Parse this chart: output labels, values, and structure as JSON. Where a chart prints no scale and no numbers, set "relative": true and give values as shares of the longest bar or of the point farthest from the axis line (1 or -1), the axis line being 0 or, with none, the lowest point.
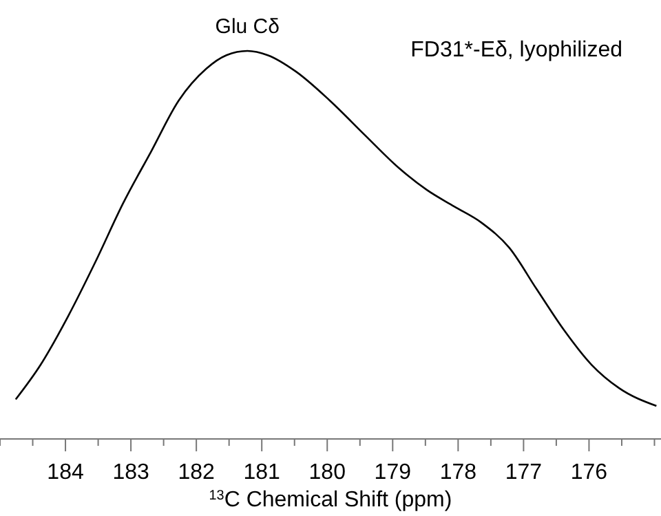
{
  "chart_data": {
    "type": "line",
    "title": "FD31*-Eδ, lyophilized",
    "xlabel": "$^{13}$C Chemical Shift (ppm)",
    "relative": true,
    "xlim": [
      185.0,
      174.9
    ],
    "xticks": [
      184,
      183,
      182,
      181,
      180,
      179,
      178,
      177,
      176
    ],
    "annotations": [
      {
        "text": "Glu Cδ",
        "x": 181.22,
        "y": 1
      }
    ],
    "marker": "none",
    "line_style": "solid",
    "tick_labels": "x",
    "series": [
      {
        "color": "#000000",
        "x": [
          184.76,
          184.38,
          183.96,
          183.54,
          183.12,
          182.69,
          182.27,
          181.85,
          181.54,
          181.22,
          180.91,
          180.48,
          179.96,
          179.43,
          178.91,
          178.48,
          178.06,
          177.64,
          177.22,
          176.8,
          176.38,
          175.96,
          175.54,
          174.97
        ],
        "values": [
          0.102,
          0.191,
          0.316,
          0.457,
          0.607,
          0.741,
          0.872,
          0.954,
          0.989,
          1,
          0.989,
          0.947,
          0.872,
          0.784,
          0.699,
          0.642,
          0.599,
          0.557,
          0.493,
          0.386,
          0.28,
          0.191,
          0.131,
          0.085
        ]
      }
    ]
  }
}
